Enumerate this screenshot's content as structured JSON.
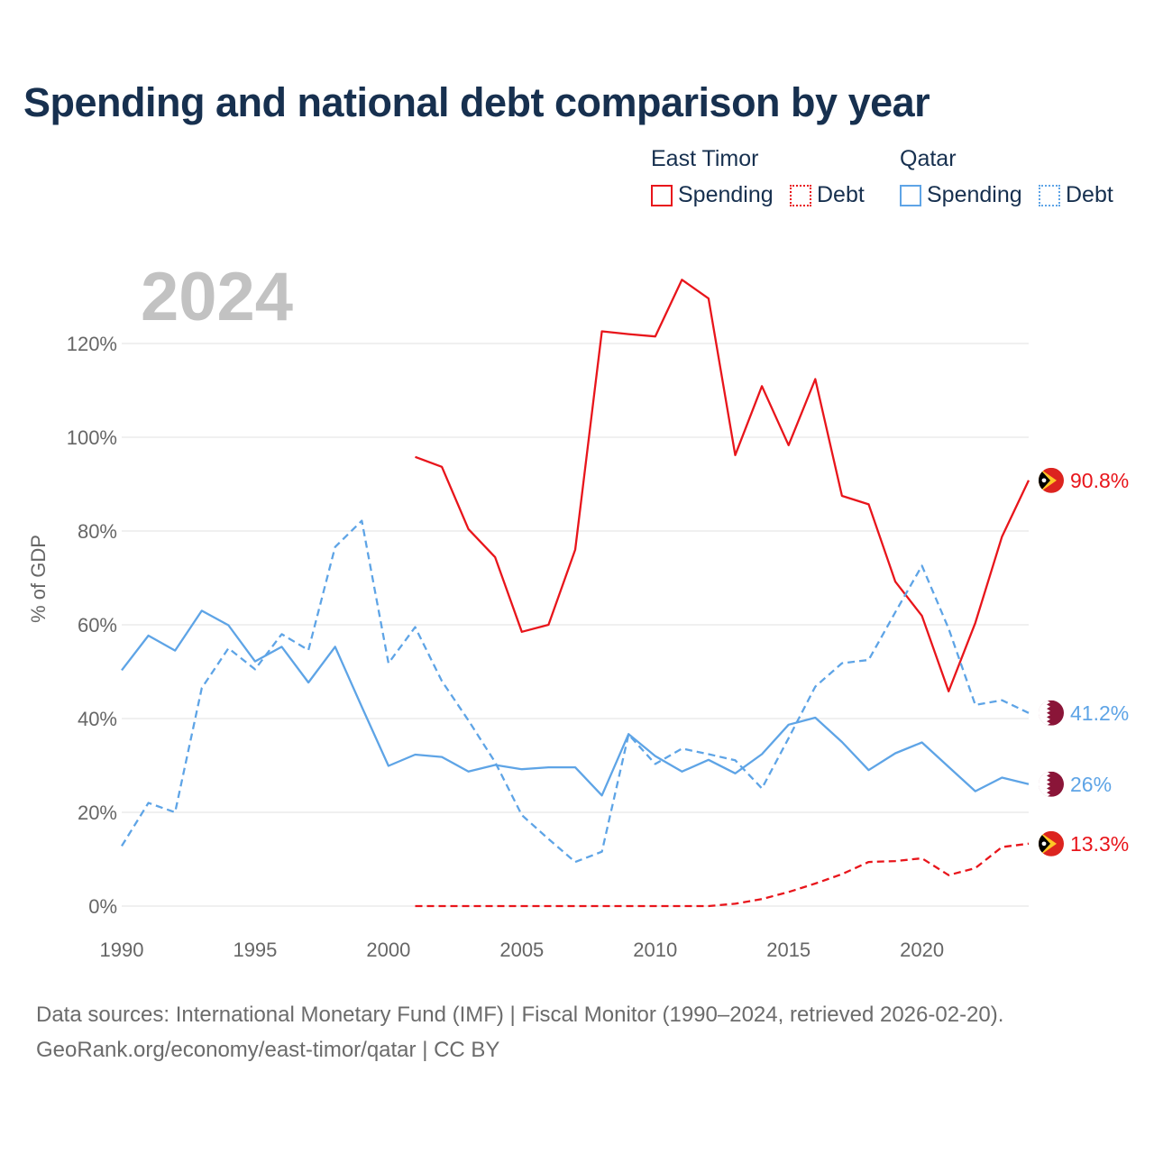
{
  "title": "Spending and national debt comparison by year",
  "year_watermark": "2024",
  "legend": {
    "groups": [
      {
        "name": "East Timor",
        "items": [
          {
            "label": "Spending",
            "color": "#e8151b",
            "style": "solid"
          },
          {
            "label": "Debt",
            "color": "#e8151b",
            "style": "dotted"
          }
        ]
      },
      {
        "name": "Qatar",
        "items": [
          {
            "label": "Spending",
            "color": "#5ea4e6",
            "style": "solid"
          },
          {
            "label": "Debt",
            "color": "#5ea4e6",
            "style": "dotted"
          }
        ]
      }
    ]
  },
  "source": {
    "line1": "Data sources: International Monetary Fund (IMF) | Fiscal Monitor (1990–2024, retrieved 2026-02-20).",
    "line2": "GeoRank.org/economy/east-timor/qatar | CC BY"
  },
  "chart_data": {
    "type": "line",
    "title": "Spending and national debt comparison by year",
    "xlabel": "",
    "ylabel": "% of GDP",
    "xlim": [
      1990,
      2024
    ],
    "ylim": [
      0,
      130
    ],
    "x_ticks": [
      1990,
      1995,
      2000,
      2005,
      2010,
      2015,
      2020
    ],
    "x_tick_labels": [
      "1990",
      "1995",
      "2000",
      "2005",
      "2010",
      "2015",
      "2020"
    ],
    "y_ticks": [
      0,
      20,
      40,
      60,
      80,
      100,
      120
    ],
    "y_tick_labels": [
      "0%",
      "20%",
      "40%",
      "60%",
      "80%",
      "100%",
      "120%"
    ],
    "grid": true,
    "series": [
      {
        "name": "East Timor Spending",
        "country": "East Timor",
        "metric": "Spending",
        "color": "#e8151b",
        "dash": "solid",
        "end_label": "90.8%",
        "flag": "east-timor",
        "points": [
          [
            2001,
            95.8
          ],
          [
            2002,
            93.7
          ],
          [
            2003,
            80.4
          ],
          [
            2004,
            74.4
          ],
          [
            2005,
            58.5
          ],
          [
            2006,
            60.0
          ],
          [
            2007,
            76.0
          ],
          [
            2008,
            122.6
          ],
          [
            2009,
            122.0
          ],
          [
            2010,
            121.5
          ],
          [
            2011,
            133.6
          ],
          [
            2012,
            129.6
          ],
          [
            2013,
            96.2
          ],
          [
            2014,
            110.9
          ],
          [
            2015,
            98.3
          ],
          [
            2016,
            112.4
          ],
          [
            2017,
            87.5
          ],
          [
            2018,
            85.7
          ],
          [
            2019,
            69.2
          ],
          [
            2020,
            61.9
          ],
          [
            2021,
            45.8
          ],
          [
            2022,
            60.4
          ],
          [
            2023,
            78.8
          ],
          [
            2024,
            90.8
          ]
        ]
      },
      {
        "name": "East Timor Debt",
        "country": "East Timor",
        "metric": "Debt",
        "color": "#e8151b",
        "dash": "dashed",
        "end_label": "13.3%",
        "flag": "east-timor",
        "points": [
          [
            2001,
            0.0
          ],
          [
            2002,
            0.0
          ],
          [
            2003,
            0.0
          ],
          [
            2004,
            0.0
          ],
          [
            2005,
            0.0
          ],
          [
            2006,
            0.0
          ],
          [
            2007,
            0.0
          ],
          [
            2008,
            0.0
          ],
          [
            2009,
            0.0
          ],
          [
            2010,
            0.0
          ],
          [
            2011,
            0.0
          ],
          [
            2012,
            0.0
          ],
          [
            2013,
            0.5
          ],
          [
            2014,
            1.5
          ],
          [
            2015,
            3.0
          ],
          [
            2016,
            4.8
          ],
          [
            2017,
            6.8
          ],
          [
            2018,
            9.4
          ],
          [
            2019,
            9.6
          ],
          [
            2020,
            10.2
          ],
          [
            2021,
            6.6
          ],
          [
            2022,
            8.1
          ],
          [
            2023,
            12.6
          ],
          [
            2024,
            13.3
          ]
        ]
      },
      {
        "name": "Qatar Spending",
        "country": "Qatar",
        "metric": "Spending",
        "color": "#5ea4e6",
        "dash": "solid",
        "end_label": "26%",
        "flag": "qatar",
        "points": [
          [
            1990,
            50.3
          ],
          [
            1991,
            57.7
          ],
          [
            1992,
            54.5
          ],
          [
            1993,
            63.0
          ],
          [
            1994,
            59.9
          ],
          [
            1995,
            52.2
          ],
          [
            1996,
            55.3
          ],
          [
            1997,
            47.7
          ],
          [
            1998,
            55.3
          ],
          [
            1999,
            42.5
          ],
          [
            2000,
            29.9
          ],
          [
            2001,
            32.3
          ],
          [
            2002,
            31.8
          ],
          [
            2003,
            28.7
          ],
          [
            2004,
            30.1
          ],
          [
            2005,
            29.2
          ],
          [
            2006,
            29.6
          ],
          [
            2007,
            29.6
          ],
          [
            2008,
            23.6
          ],
          [
            2009,
            36.7
          ],
          [
            2010,
            32.0
          ],
          [
            2011,
            28.7
          ],
          [
            2012,
            31.2
          ],
          [
            2013,
            28.3
          ],
          [
            2014,
            32.4
          ],
          [
            2015,
            38.7
          ],
          [
            2016,
            40.2
          ],
          [
            2017,
            35.0
          ],
          [
            2018,
            29.0
          ],
          [
            2019,
            32.6
          ],
          [
            2020,
            34.9
          ],
          [
            2021,
            29.7
          ],
          [
            2022,
            24.5
          ],
          [
            2023,
            27.4
          ],
          [
            2024,
            26.0
          ]
        ]
      },
      {
        "name": "Qatar Debt",
        "country": "Qatar",
        "metric": "Debt",
        "color": "#5ea4e6",
        "dash": "dashed",
        "end_label": "41.2%",
        "flag": "qatar",
        "points": [
          [
            1990,
            12.8
          ],
          [
            1991,
            22.0
          ],
          [
            1992,
            20.0
          ],
          [
            1993,
            46.5
          ],
          [
            1994,
            55.0
          ],
          [
            1995,
            50.5
          ],
          [
            1996,
            58.0
          ],
          [
            1997,
            54.6
          ],
          [
            1998,
            76.6
          ],
          [
            1999,
            82.2
          ],
          [
            2000,
            51.8
          ],
          [
            2001,
            59.5
          ],
          [
            2002,
            48.0
          ],
          [
            2003,
            39.6
          ],
          [
            2004,
            30.7
          ],
          [
            2005,
            19.4
          ],
          [
            2006,
            14.3
          ],
          [
            2007,
            9.4
          ],
          [
            2008,
            11.6
          ],
          [
            2009,
            36.6
          ],
          [
            2010,
            30.3
          ],
          [
            2011,
            33.6
          ],
          [
            2012,
            32.4
          ],
          [
            2013,
            31.1
          ],
          [
            2014,
            25.1
          ],
          [
            2015,
            35.8
          ],
          [
            2016,
            46.8
          ],
          [
            2017,
            51.8
          ],
          [
            2018,
            52.5
          ],
          [
            2019,
            62.7
          ],
          [
            2020,
            72.6
          ],
          [
            2021,
            59.2
          ],
          [
            2022,
            42.9
          ],
          [
            2023,
            43.9
          ],
          [
            2024,
            41.2
          ]
        ]
      }
    ]
  }
}
